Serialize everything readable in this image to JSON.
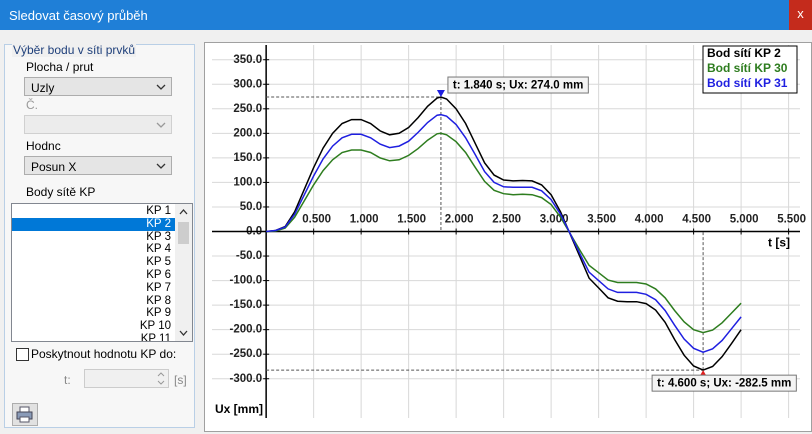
{
  "window": {
    "title": "Sledovat časový průběh",
    "close": "x"
  },
  "panel": {
    "group_title": "Výběr bodu v síti prvků",
    "surface_label": "Plocha / prut",
    "surface_value": "Uzly",
    "number_label": "Č.",
    "value_label": "Hodnc",
    "value_value": "Posun X",
    "points_label": "Body sítě KP",
    "points": [
      "KP 1",
      "KP 2",
      "KP 3",
      "KP 4",
      "KP 5",
      "KP 6",
      "KP 7",
      "KP 8",
      "KP 9",
      "KP 10",
      "KP 11"
    ],
    "selected": 1,
    "checkbox_label": "Poskytnout hodnotu KP do:",
    "t_label": "t:",
    "t_unit": "[s]"
  },
  "chart_data": {
    "type": "line",
    "x_label": "t [s]",
    "y_label": "Ux [mm]",
    "xlim": [
      -0.57,
      5.62
    ],
    "ylim": [
      -380,
      380
    ],
    "grid": true,
    "legend": "top-right",
    "xticks": [
      {
        "value": 0.5,
        "label": "0.500"
      },
      {
        "value": 1.0,
        "label": "1.000"
      },
      {
        "value": 1.5,
        "label": "1.500"
      },
      {
        "value": 2.0,
        "label": "2.000"
      },
      {
        "value": 2.5,
        "label": "2.500"
      },
      {
        "value": 3.0,
        "label": "3.000"
      },
      {
        "value": 3.5,
        "label": "3.500"
      },
      {
        "value": 4.0,
        "label": "4.000"
      },
      {
        "value": 4.5,
        "label": "4.500"
      },
      {
        "value": 5.0,
        "label": "5.000"
      },
      {
        "value": 5.5,
        "label": "5.500"
      }
    ],
    "yticks": [
      {
        "value": 350,
        "label": "350.0"
      },
      {
        "value": 300,
        "label": "300.0"
      },
      {
        "value": 250,
        "label": "250.0"
      },
      {
        "value": 200,
        "label": "200.0"
      },
      {
        "value": 150,
        "label": "150.0"
      },
      {
        "value": 100,
        "label": "100.0"
      },
      {
        "value": 50,
        "label": "50.0"
      },
      {
        "value": 0,
        "label": "0.0"
      },
      {
        "value": -50,
        "label": "-50.0"
      },
      {
        "value": -100,
        "label": "-100.0"
      },
      {
        "value": -150,
        "label": "-150.0"
      },
      {
        "value": -200,
        "label": "-200.0"
      },
      {
        "value": -250,
        "label": "-250.0"
      },
      {
        "value": -300,
        "label": "-300.0"
      }
    ],
    "x": [
      0,
      0.1,
      0.2,
      0.3,
      0.4,
      0.5,
      0.6,
      0.7,
      0.8,
      0.9,
      1.0,
      1.1,
      1.2,
      1.3,
      1.4,
      1.5,
      1.6,
      1.7,
      1.8,
      1.84,
      1.9,
      2.0,
      2.1,
      2.2,
      2.3,
      2.4,
      2.5,
      2.6,
      2.7,
      2.8,
      2.9,
      3.0,
      3.1,
      3.2,
      3.3,
      3.4,
      3.5,
      3.6,
      3.7,
      3.8,
      3.9,
      4.0,
      4.1,
      4.2,
      4.3,
      4.4,
      4.5,
      4.6,
      4.7,
      4.8,
      4.9,
      5.0
    ],
    "series": [
      {
        "name": "Bod sítí KP 2",
        "color": "#000000",
        "values": [
          0,
          2,
          10,
          40,
          85,
          130,
          170,
          200,
          220,
          228,
          228,
          220,
          205,
          197,
          200,
          212,
          232,
          255,
          272,
          274,
          270,
          250,
          220,
          180,
          140,
          115,
          105,
          103,
          104,
          103,
          95,
          75,
          40,
          -5,
          -50,
          -95,
          -115,
          -135,
          -142,
          -143,
          -143,
          -147,
          -160,
          -185,
          -220,
          -252,
          -274,
          -282.5,
          -275,
          -255,
          -228,
          -200
        ]
      },
      {
        "name": "Bod sítí KP 30",
        "color": "#2e7d1f",
        "values": [
          0,
          1,
          7,
          29,
          62,
          95,
          124,
          146,
          161,
          166,
          166,
          161,
          150,
          144,
          146,
          155,
          169,
          186,
          199,
          200,
          197,
          183,
          161,
          131,
          102,
          84,
          77,
          75,
          76,
          75,
          69,
          55,
          29,
          -4,
          -37,
          -69,
          -84,
          -99,
          -104,
          -104,
          -104,
          -107,
          -117,
          -135,
          -161,
          -184,
          -200,
          -206,
          -201,
          -186,
          -166,
          -146
        ]
      },
      {
        "name": "Bod sítí KP 31",
        "color": "#1f1fe0",
        "values": [
          0,
          2,
          9,
          35,
          74,
          113,
          148,
          174,
          191,
          198,
          198,
          191,
          178,
          171,
          174,
          184,
          202,
          222,
          237,
          238,
          235,
          218,
          191,
          157,
          122,
          100,
          91,
          90,
          90,
          90,
          83,
          65,
          35,
          -4,
          -44,
          -83,
          -100,
          -117,
          -124,
          -124,
          -124,
          -128,
          -139,
          -161,
          -191,
          -219,
          -238,
          -246,
          -239,
          -222,
          -198,
          -174
        ]
      }
    ],
    "annotations": [
      {
        "text": "t: 1.840 s; Ux: 274.0 mm",
        "x": 1.84,
        "y": 274,
        "color": "#1f1fe0"
      },
      {
        "text": "t: 4.600 s; Ux: -282.5 mm",
        "x": 4.6,
        "y": -282.5,
        "color": "#e02020"
      }
    ]
  }
}
